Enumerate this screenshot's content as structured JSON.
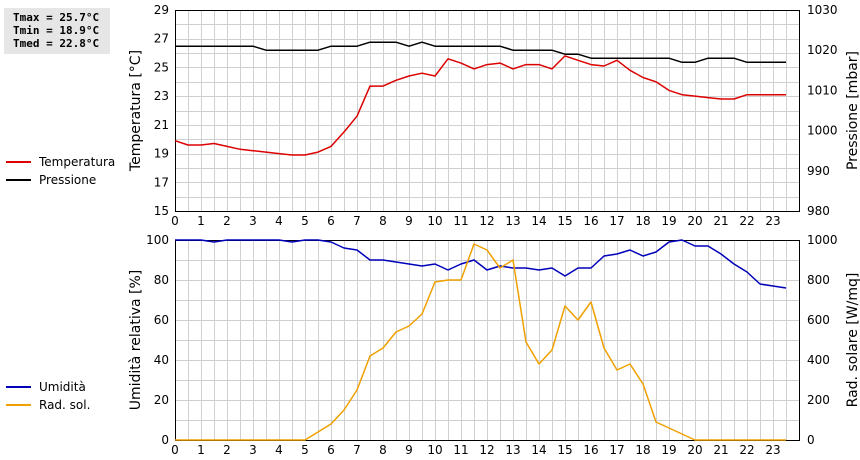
{
  "stats": {
    "tmax": "Tmax = 25.7°C",
    "tmin": "Tmin = 18.9°C",
    "tmed": "Tmed = 22.8°C"
  },
  "colors": {
    "temperature": "#dd0000",
    "pressure": "#000000",
    "humidity": "#0000bb",
    "radiation": "#f0a000",
    "grid": "#d0d0d0"
  },
  "chart_data": [
    {
      "type": "line",
      "title": "",
      "xlabel": "",
      "x_ticks": [
        0,
        1,
        2,
        3,
        4,
        5,
        6,
        7,
        8,
        9,
        10,
        11,
        12,
        13,
        14,
        15,
        16,
        17,
        18,
        19,
        20,
        21,
        22,
        23
      ],
      "xlim": [
        0,
        24
      ],
      "grid": true,
      "legend_position": "left",
      "ylabel_left": "Temperatura [°C]",
      "ylim_left": [
        15,
        29
      ],
      "yticks_left": [
        15,
        17,
        19,
        21,
        23,
        25,
        27,
        29
      ],
      "ylabel_right": "Pressione [mbar]",
      "ylim_right": [
        980,
        1030
      ],
      "yticks_right": [
        980,
        990,
        1000,
        1010,
        1020,
        1030
      ],
      "x": [
        0,
        0.5,
        1,
        1.5,
        2,
        2.5,
        3,
        3.5,
        4,
        4.5,
        5,
        5.5,
        6,
        6.5,
        7,
        7.5,
        8,
        8.5,
        9,
        9.5,
        10,
        10.5,
        11,
        11.5,
        12,
        12.5,
        13,
        13.5,
        14,
        14.5,
        15,
        15.5,
        16,
        16.5,
        17,
        17.5,
        18,
        18.5,
        19,
        19.5,
        20,
        20.5,
        21,
        21.5,
        22,
        22.5,
        23,
        23.5
      ],
      "series": [
        {
          "name": "Temperatura",
          "axis": "left",
          "values": [
            19.9,
            19.6,
            19.6,
            19.7,
            19.5,
            19.3,
            19.2,
            19.1,
            19.0,
            18.9,
            18.9,
            19.1,
            19.5,
            20.5,
            21.6,
            23.7,
            23.7,
            24.1,
            24.4,
            24.6,
            24.4,
            25.6,
            25.3,
            24.9,
            25.2,
            25.3,
            24.9,
            25.2,
            25.2,
            24.9,
            25.8,
            25.5,
            25.2,
            25.1,
            25.5,
            24.8,
            24.3,
            24.0,
            23.4,
            23.1,
            23.0,
            22.9,
            22.8,
            22.8,
            23.1,
            23.1,
            23.1,
            23.1
          ]
        },
        {
          "name": "Pressione",
          "axis": "right",
          "values": [
            1021,
            1021,
            1021,
            1021,
            1021,
            1021,
            1021,
            1020,
            1020,
            1020,
            1020,
            1020,
            1021,
            1021,
            1021,
            1022,
            1022,
            1022,
            1021,
            1022,
            1021,
            1021,
            1021,
            1021,
            1021,
            1021,
            1020,
            1020,
            1020,
            1020,
            1019,
            1019,
            1018,
            1018,
            1018,
            1018,
            1018,
            1018,
            1018,
            1017,
            1017,
            1018,
            1018,
            1018,
            1017,
            1017,
            1017,
            1017
          ]
        }
      ]
    },
    {
      "type": "line",
      "title": "",
      "xlabel": "",
      "x_ticks": [
        0,
        1,
        2,
        3,
        4,
        5,
        6,
        7,
        8,
        9,
        10,
        11,
        12,
        13,
        14,
        15,
        16,
        17,
        18,
        19,
        20,
        21,
        22,
        23
      ],
      "xlim": [
        0,
        24
      ],
      "grid": true,
      "legend_position": "left",
      "ylabel_left": "Umidità relativa [%]",
      "ylim_left": [
        0,
        100
      ],
      "yticks_left": [
        0,
        20,
        40,
        60,
        80,
        100
      ],
      "ylabel_right": "Rad. solare [W/mq]",
      "ylim_right": [
        0,
        1000
      ],
      "yticks_right": [
        0,
        200,
        400,
        600,
        800,
        1000
      ],
      "x": [
        0,
        0.5,
        1,
        1.5,
        2,
        2.5,
        3,
        3.5,
        4,
        4.5,
        5,
        5.5,
        6,
        6.5,
        7,
        7.5,
        8,
        8.5,
        9,
        9.5,
        10,
        10.5,
        11,
        11.5,
        12,
        12.5,
        13,
        13.5,
        14,
        14.5,
        15,
        15.5,
        16,
        16.5,
        17,
        17.5,
        18,
        18.5,
        19,
        19.5,
        20,
        20.5,
        21,
        21.5,
        22,
        22.5,
        23,
        23.5
      ],
      "series": [
        {
          "name": "Umidità",
          "axis": "left",
          "values": [
            100,
            100,
            100,
            99,
            100,
            100,
            100,
            100,
            100,
            99,
            100,
            100,
            99,
            96,
            95,
            90,
            90,
            89,
            88,
            87,
            88,
            85,
            88,
            90,
            85,
            87,
            86,
            86,
            85,
            86,
            82,
            86,
            86,
            92,
            93,
            95,
            92,
            94,
            99,
            100,
            97,
            97,
            93,
            88,
            84,
            78,
            77,
            76
          ]
        },
        {
          "name": "Rad. sol.",
          "axis": "right",
          "values": [
            0,
            0,
            0,
            0,
            0,
            0,
            0,
            0,
            0,
            0,
            0,
            40,
            80,
            150,
            250,
            420,
            460,
            540,
            570,
            630,
            790,
            800,
            800,
            980,
            950,
            860,
            900,
            490,
            380,
            450,
            670,
            600,
            690,
            460,
            350,
            380,
            280,
            90,
            60,
            30,
            0,
            0,
            0,
            0,
            0,
            0,
            0,
            0
          ]
        }
      ]
    }
  ]
}
